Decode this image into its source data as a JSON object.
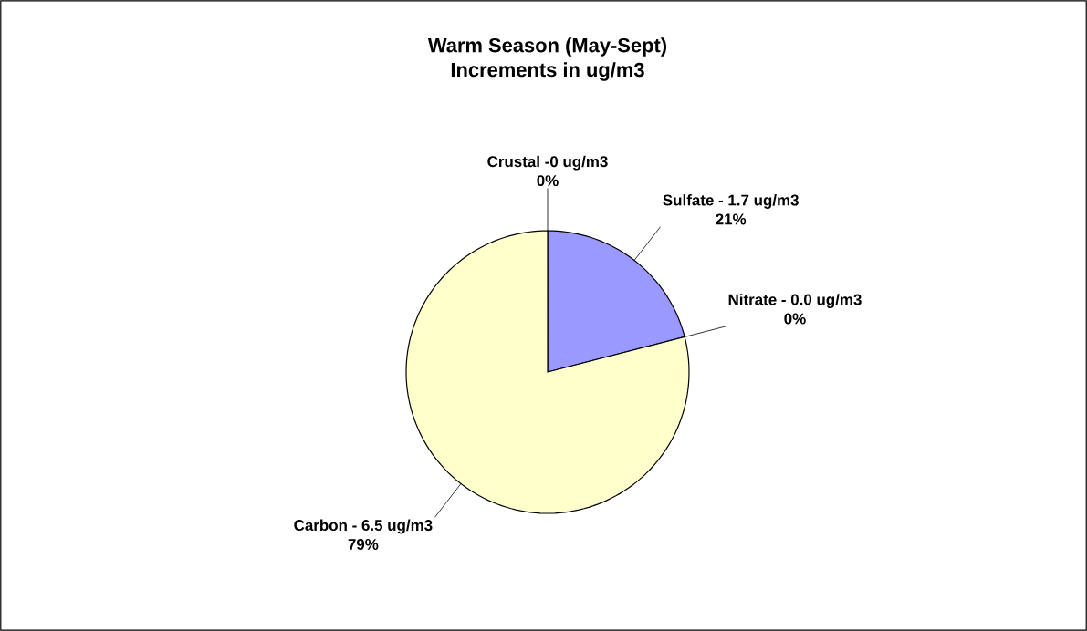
{
  "chart_data": {
    "type": "pie",
    "title": "Warm Season (May-Sept)",
    "subtitle": "Increments in ug/m3",
    "categories": [
      "Sulfate - 1.7 ug/m3",
      "Nitrate - 0.0 ug/m3",
      "Carbon - 6.5 ug/m3",
      "Crustal -0 ug/m3"
    ],
    "values": [
      21,
      0,
      79,
      0
    ],
    "value_labels": [
      "21%",
      "0%",
      "79%",
      "0%"
    ],
    "colors": [
      "#9999ff",
      "#ff99cc",
      "#ffffcc",
      "#ccffff"
    ]
  }
}
